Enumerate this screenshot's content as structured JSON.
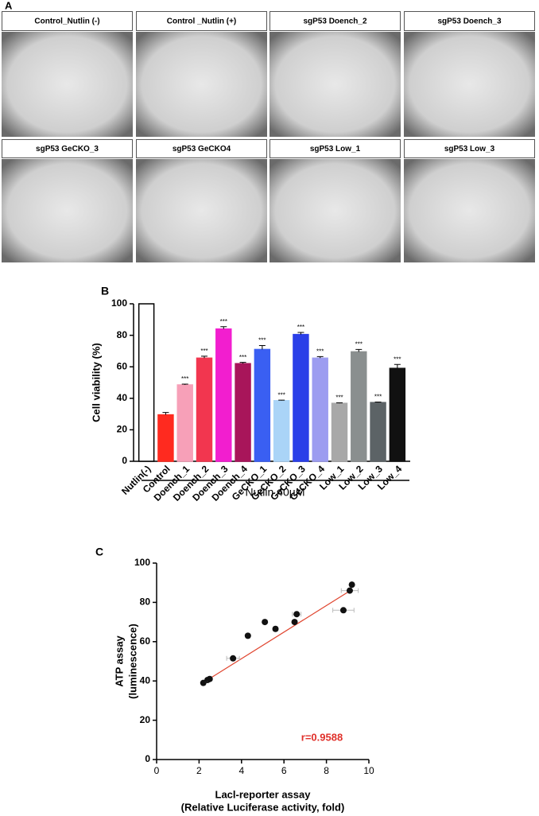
{
  "panel_a": {
    "label": "A",
    "images": [
      {
        "title": "Control_Nutlin (-)"
      },
      {
        "title": "Control _Nutlin (+)"
      },
      {
        "title": "sgP53 Doench_2"
      },
      {
        "title": "sgP53 Doench_3"
      },
      {
        "title": "sgP53 GeCKO_3"
      },
      {
        "title": "sgP53 GeCKO4"
      },
      {
        "title": "sgP53 Low_1"
      },
      {
        "title": "sgP53 Low_3"
      }
    ]
  },
  "chart_data": [
    {
      "type": "bar",
      "panel_label": "B",
      "y_label": "Cell viability (%)",
      "group_label": "Nutlin 40µM",
      "categories": [
        "Nutlin(-)",
        "Control",
        "Doench_1",
        "Doench_2",
        "Doench_3",
        "Doench_4",
        "GeCKO_1",
        "GeCKO_2",
        "GeCKO_3",
        "GeCKO_4",
        "Low_1",
        "Low_2",
        "Low_3",
        "Low_4"
      ],
      "values": [
        100,
        29.5,
        48.5,
        65.5,
        84,
        62,
        71,
        38.5,
        80.5,
        65.5,
        36.8,
        69.5,
        37.3,
        59
      ],
      "errors": [
        0,
        1.5,
        0.5,
        1.2,
        1.5,
        0.8,
        2.5,
        0.3,
        1.3,
        1,
        0.3,
        1.5,
        0.3,
        2.5
      ],
      "colors": [
        "#ffffff",
        "#ff2a1f",
        "#f7a0b8",
        "#f2364f",
        "#f21ecf",
        "#a8155a",
        "#3a5ff2",
        "#aad4f7",
        "#2a3fe8",
        "#9c9cf0",
        "#a8a8a8",
        "#8a8f8f",
        "#5c6366",
        "#111111"
      ],
      "significance": [
        null,
        null,
        "***",
        "***",
        "***",
        "***",
        "***",
        "***",
        "***",
        "***",
        "***",
        "***",
        "***",
        "***"
      ],
      "ylim": [
        0,
        100
      ],
      "yticks": [
        0,
        20,
        40,
        60,
        80,
        100
      ]
    },
    {
      "type": "scatter",
      "panel_label": "C",
      "x_label": [
        "Lacl-reporter assay",
        "(Relative Luciferase activity, fold)"
      ],
      "y_label": [
        "ATP assay",
        "(luminescence)"
      ],
      "x": [
        2.2,
        2.4,
        2.5,
        3.6,
        4.3,
        5.1,
        5.6,
        6.5,
        6.6,
        8.8,
        9.1,
        9.2
      ],
      "x_errors": [
        0.1,
        0.1,
        0.1,
        0.3,
        0.1,
        0.1,
        0.1,
        0.1,
        0.2,
        0.5,
        0.4,
        0.1
      ],
      "values": [
        39,
        40.5,
        41,
        51.5,
        63,
        70,
        66.5,
        70,
        74,
        76,
        86,
        89
      ],
      "color": "#111111",
      "fit_line": {
        "x": [
          2.1,
          9.2
        ],
        "y": [
          38.5,
          86.5
        ],
        "color": "#e0452f"
      },
      "annotation": "r=0.9588",
      "annotation_color": "#e0302a",
      "xlim": [
        0,
        10
      ],
      "xticks": [
        0,
        2,
        4,
        6,
        8,
        10
      ],
      "ylim": [
        0,
        100
      ],
      "yticks": [
        0,
        20,
        40,
        60,
        80,
        100
      ]
    }
  ]
}
